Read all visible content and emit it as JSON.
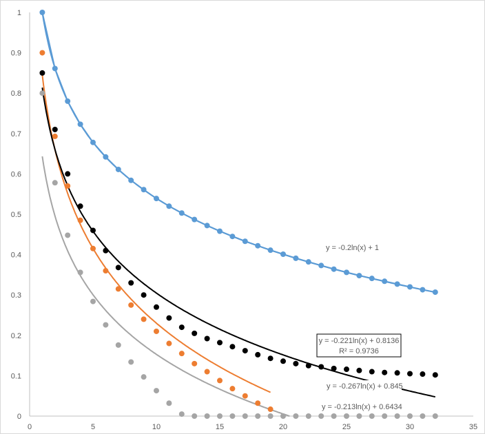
{
  "chart_data": {
    "type": "scatter",
    "title": "",
    "xlabel": "",
    "ylabel": "",
    "xlim": [
      0,
      35
    ],
    "ylim": [
      0,
      1
    ],
    "x_ticks": [
      "0",
      "5",
      "10",
      "15",
      "20",
      "25",
      "30",
      "35"
    ],
    "y_ticks": [
      "0",
      "0.1",
      "0.2",
      "0.3",
      "0.4",
      "0.5",
      "0.6",
      "0.7",
      "0.8",
      "0.9",
      "1"
    ],
    "grid": false,
    "series": [
      {
        "name": "blue",
        "color": "#5b9bd5",
        "connected": true,
        "x": [
          1,
          2,
          3,
          4,
          5,
          6,
          7,
          8,
          9,
          10,
          11,
          12,
          13,
          14,
          15,
          16,
          17,
          18,
          19,
          20,
          21,
          22,
          23,
          24,
          25,
          26,
          27,
          28,
          29,
          30,
          31,
          32
        ],
        "y": [
          1,
          0.861,
          0.78,
          0.723,
          0.678,
          0.642,
          0.611,
          0.584,
          0.561,
          0.539,
          0.52,
          0.503,
          0.487,
          0.472,
          0.458,
          0.445,
          0.433,
          0.422,
          0.411,
          0.401,
          0.391,
          0.382,
          0.373,
          0.364,
          0.356,
          0.348,
          0.341,
          0.334,
          0.327,
          0.32,
          0.313,
          0.307
        ],
        "trendline": {
          "a": -0.2,
          "b": 1,
          "label": "y = -0.2ln(x) + 1"
        }
      },
      {
        "name": "orange",
        "color": "#ed7d31",
        "x": [
          1,
          2,
          3,
          4,
          5,
          6,
          7,
          8,
          9,
          10,
          11,
          12,
          13,
          14,
          15,
          16,
          17,
          18,
          19
        ],
        "y": [
          0.9,
          0.693,
          0.57,
          0.485,
          0.415,
          0.36,
          0.315,
          0.275,
          0.24,
          0.21,
          0.18,
          0.155,
          0.13,
          0.11,
          0.088,
          0.068,
          0.05,
          0.032,
          0.017
        ],
        "trendline": {
          "a": -0.267,
          "b": 0.845,
          "label": "y = -0.267ln(x) + 0.845"
        }
      },
      {
        "name": "black",
        "color": "#000000",
        "x": [
          1,
          2,
          3,
          4,
          5,
          6,
          7,
          8,
          9,
          10,
          11,
          12,
          13,
          14,
          15,
          16,
          17,
          18,
          19,
          20,
          21,
          22,
          23,
          24,
          25,
          26,
          27,
          28,
          29,
          30,
          31,
          32
        ],
        "y": [
          0.85,
          0.71,
          0.6,
          0.52,
          0.46,
          0.41,
          0.368,
          0.33,
          0.3,
          0.27,
          0.243,
          0.22,
          0.205,
          0.192,
          0.182,
          0.172,
          0.162,
          0.152,
          0.143,
          0.136,
          0.13,
          0.125,
          0.122,
          0.118,
          0.116,
          0.113,
          0.11,
          0.108,
          0.107,
          0.105,
          0.104,
          0.102
        ],
        "trendline": {
          "a": -0.221,
          "b": 0.8136,
          "label": "y = -0.221ln(x) + 0.8136",
          "r2_label": "R² = 0.9736"
        }
      },
      {
        "name": "gray",
        "color": "#a5a5a5",
        "x": [
          1,
          2,
          3,
          4,
          5,
          6,
          7,
          8,
          9,
          10,
          11,
          12,
          13,
          14,
          15,
          16,
          17,
          18,
          19,
          20,
          21,
          22,
          23,
          24,
          25,
          26,
          27,
          28,
          29,
          30,
          31,
          32
        ],
        "y": [
          0.8,
          0.578,
          0.448,
          0.356,
          0.284,
          0.226,
          0.176,
          0.134,
          0.097,
          0.063,
          0.032,
          0.005,
          0,
          0,
          0,
          0,
          0,
          0,
          0,
          0,
          0,
          0,
          0,
          0,
          0,
          0,
          0,
          0,
          0,
          0,
          0,
          0
        ],
        "trendline": {
          "a": -0.213,
          "b": 0.6434,
          "label": "y = -0.213ln(x) + 0.6434"
        }
      }
    ]
  }
}
